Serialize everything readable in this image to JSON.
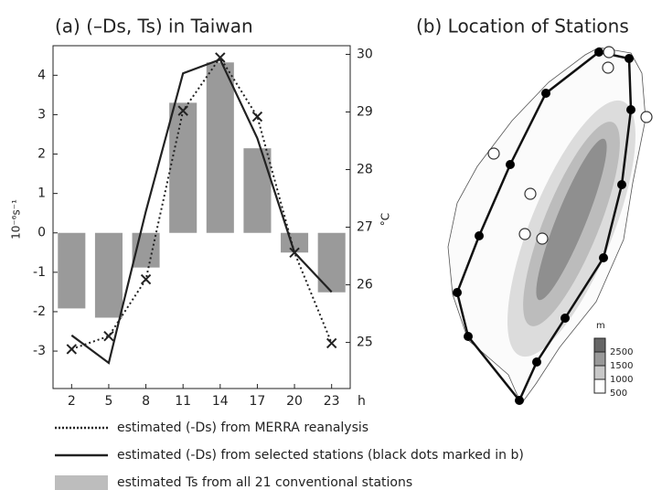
{
  "chart_data": {
    "type": "bar",
    "title": "(a) (–Ds, Ts) in Taiwan",
    "categories": [
      "2",
      "5",
      "8",
      "11",
      "14",
      "17",
      "20",
      "23"
    ],
    "x_label": "h",
    "y_label": "10⁻⁶s⁻¹",
    "y2_label": "°C",
    "ylim": [
      -3.95,
      4.75
    ],
    "yticks": [
      -3,
      -2,
      -1,
      0,
      1,
      2,
      3,
      4
    ],
    "y2lim": [
      24.2,
      30.15
    ],
    "y2ticks": [
      25,
      26,
      27,
      28,
      29,
      30
    ],
    "series": [
      {
        "name": "estimated (-Ds) from MERRA reanalysis",
        "type": "line",
        "style": "dotted",
        "marker": "x",
        "color": "#222222",
        "values": [
          -2.95,
          -2.62,
          -1.18,
          3.1,
          4.45,
          2.95,
          -0.5,
          -2.8
        ]
      },
      {
        "name": "estimated (-Ds) from selected stations (black dots marked in b)",
        "type": "line",
        "style": "solid",
        "color": "#222222",
        "values": [
          -2.6,
          -3.3,
          0.55,
          4.05,
          4.4,
          2.4,
          -0.5,
          -1.5
        ]
      },
      {
        "name": "estimated Ts from all 21 conventional stations",
        "type": "bar",
        "axis": "y2",
        "color": "#9a9a9a",
        "legend_color": "#bdbdbd",
        "values": [
          25.59,
          25.43,
          26.3,
          29.16,
          29.86,
          28.37,
          26.56,
          25.87
        ]
      }
    ]
  },
  "map": {
    "title": "(b) Location of Stations",
    "legend_title": "m",
    "legend_labels": [
      "2500",
      "1500",
      "1000",
      "500"
    ]
  }
}
